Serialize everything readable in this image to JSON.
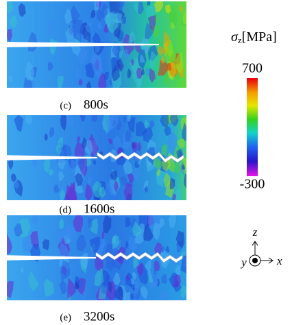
{
  "panels": [
    {
      "label": "(c)",
      "time": "800s"
    },
    {
      "label": "(d)",
      "time": "1600s"
    },
    {
      "label": "(e)",
      "time": "3200s"
    }
  ],
  "colorbar": {
    "symbol": "σ",
    "subscript": "z",
    "unit": "[MPa]",
    "max_label": "700",
    "min_label": "-300"
  },
  "axes": {
    "z": "z",
    "y": "y",
    "x": "x"
  }
}
